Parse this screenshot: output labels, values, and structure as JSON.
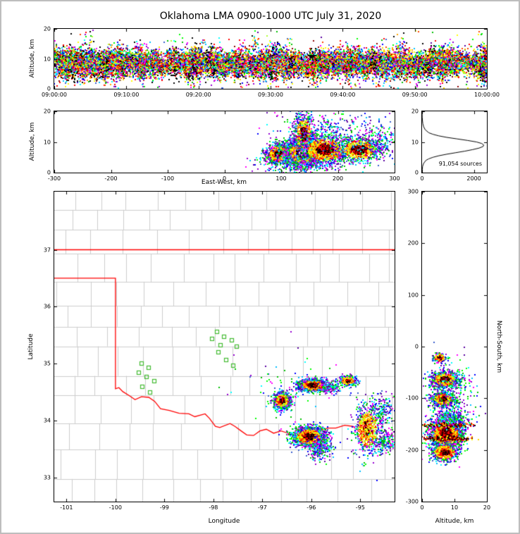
{
  "figure": {
    "title": "Oklahoma LMA 0900-1000 UTC July 31, 2020",
    "background": "#ffffff",
    "border_color": "#bdbdbd"
  },
  "palette": {
    "fringe": [
      "#0000ff",
      "#3a5fcd",
      "#00bfff",
      "#00ffff",
      "#00c000",
      "#00ff00",
      "#ff00ff",
      "#9400d3",
      "#5a00a0"
    ],
    "mid": [
      "#ff0000",
      "#ff4500",
      "#ffa500",
      "#ffd700",
      "#ffff00",
      "#adff2f"
    ],
    "core": [
      "#000000",
      "#3a0000",
      "#8b0000",
      "#ff0000"
    ],
    "white_core": [
      "#ffffff",
      "#e8e8e8",
      "#bdbdbd"
    ],
    "station": "#90ee90",
    "station_edge": "#44bb33",
    "state_border": "#ff0000",
    "county": "#cccccc",
    "histogram_line": "#000000"
  },
  "chart_data": [
    {
      "id": "time_height",
      "type": "scatter",
      "title": "",
      "xlabel": "",
      "ylabel": "Altitude, km",
      "xlim": [
        0,
        3600
      ],
      "ylim": [
        0,
        20
      ],
      "grid": false,
      "description": "Dense multicolor VHF lightning sources across the full hour, concentrated 5-12 km altitude, occasional columns to 18 km and black dense streaks",
      "xticks": [
        {
          "v": 0,
          "label": "09:00:00"
        },
        {
          "v": 600,
          "label": "09:10:00"
        },
        {
          "v": 1200,
          "label": "09:20:00"
        },
        {
          "v": 1800,
          "label": "09:30:00"
        },
        {
          "v": 2400,
          "label": "09:40:00"
        },
        {
          "v": 3000,
          "label": "09:50:00"
        },
        {
          "v": 3600,
          "label": "10:00:00"
        }
      ],
      "yticks": [
        {
          "v": 0,
          "label": "0"
        },
        {
          "v": 10,
          "label": "10"
        },
        {
          "v": 20,
          "label": "20"
        }
      ],
      "generator": {
        "kind": "bursts",
        "seed": 11,
        "bursts": 1050,
        "pts_min": 5,
        "pts_max": 30,
        "alt_mean": 8.4,
        "alt_sd": 1.8,
        "alt_jitter": 1.5,
        "black_prob": 0.07,
        "tall_prob": 0.06,
        "time_jitter_s": 18
      }
    },
    {
      "id": "east_west",
      "type": "scatter",
      "title": "",
      "xlabel": "East-West, km",
      "ylabel": "Altitude, km",
      "xlim": [
        -300,
        300
      ],
      "ylim": [
        0,
        20
      ],
      "grid": false,
      "seed": 21,
      "description": "Storm cross-section: dense sources 60-300 km east of network, main core near 120-150 km at 5-9 km altitude with overexposed white center, plume to 20 km",
      "xticks": [
        {
          "v": -300,
          "label": "-300"
        },
        {
          "v": -200,
          "label": "-200"
        },
        {
          "v": -100,
          "label": "-100"
        },
        {
          "v": 0,
          "label": "0"
        },
        {
          "v": 100,
          "label": "100"
        },
        {
          "v": 200,
          "label": "200"
        },
        {
          "v": 300,
          "label": "300"
        }
      ],
      "yticks": [
        {
          "v": 0,
          "label": "0"
        },
        {
          "v": 10,
          "label": "10"
        },
        {
          "v": 20,
          "label": "20"
        }
      ],
      "clusters": [
        {
          "cx": 95,
          "cy": 6,
          "sx": 11,
          "sy": 1.7,
          "n": 900,
          "style": "storm"
        },
        {
          "cx": 138,
          "cy": 6.5,
          "sx": 16,
          "sy": 2.3,
          "n": 2300,
          "style": "storm_white"
        },
        {
          "cx": 140,
          "cy": 12.5,
          "sx": 9,
          "sy": 3.4,
          "n": 650,
          "style": "storm"
        },
        {
          "cx": 178,
          "cy": 7.5,
          "sx": 22,
          "sy": 2.5,
          "n": 1300,
          "style": "storm"
        },
        {
          "cx": 238,
          "cy": 7.5,
          "sx": 20,
          "sy": 2.1,
          "n": 800,
          "style": "storm"
        },
        {
          "cx": 272,
          "cy": 10,
          "sx": 18,
          "sy": 2.4,
          "n": 220,
          "style": "sparse"
        },
        {
          "cx": 190,
          "cy": 14.5,
          "sx": 55,
          "sy": 2.6,
          "n": 260,
          "style": "sparse"
        },
        {
          "cx": 130,
          "cy": 2.8,
          "sx": 35,
          "sy": 1.4,
          "n": 260,
          "style": "sparse"
        }
      ]
    },
    {
      "id": "histogram",
      "type": "line",
      "title": "",
      "xlabel": "",
      "ylabel": "",
      "xlim": [
        0,
        2500
      ],
      "ylim": [
        0,
        20
      ],
      "grid": false,
      "annotation": "91,054 sources",
      "description": "Altitude histogram of source counts, peak ~2380 sources near 9 km",
      "xticks": [
        {
          "v": 0,
          "label": "0"
        },
        {
          "v": 2000,
          "label": "2000"
        }
      ],
      "yticks": [
        {
          "v": 0,
          "label": "0"
        },
        {
          "v": 10,
          "label": "10"
        },
        {
          "v": 20,
          "label": "20"
        }
      ],
      "profile": {
        "alt": [
          0,
          1,
          2,
          3,
          4,
          4.5,
          5,
          5.5,
          6,
          6.5,
          7,
          7.5,
          8,
          8.5,
          9,
          9.5,
          10,
          10.5,
          11,
          11.5,
          12,
          12.5,
          13,
          14,
          15,
          16,
          17,
          18,
          19,
          20
        ],
        "count": [
          5,
          10,
          20,
          60,
          150,
          260,
          420,
          650,
          950,
          1300,
          1650,
          1950,
          2200,
          2350,
          2380,
          2300,
          2100,
          1750,
          1350,
          950,
          640,
          420,
          260,
          120,
          60,
          30,
          15,
          8,
          4,
          2
        ]
      }
    },
    {
      "id": "map",
      "type": "scatter",
      "title": "",
      "xlabel": "Longitude",
      "ylabel": "Latitude",
      "xlim": [
        -101.25,
        -94.3
      ],
      "ylim": [
        32.58,
        38.02
      ],
      "grid": false,
      "seed": 31,
      "description": "Plan view: Oklahoma state border in red, gray county lines, green LMA station squares, colored lightning source clusters in SE Oklahoma",
      "xticks": [
        {
          "v": -101,
          "label": "-101"
        },
        {
          "v": -100,
          "label": "-100"
        },
        {
          "v": -99,
          "label": "-99"
        },
        {
          "v": -98,
          "label": "-98"
        },
        {
          "v": -97,
          "label": "-97"
        },
        {
          "v": -96,
          "label": "-96"
        },
        {
          "v": -95,
          "label": "-95"
        }
      ],
      "yticks": [
        {
          "v": 33,
          "label": "33"
        },
        {
          "v": 34,
          "label": "34"
        },
        {
          "v": 35,
          "label": "35"
        },
        {
          "v": 36,
          "label": "36"
        },
        {
          "v": 37,
          "label": "37"
        }
      ],
      "state_border": {
        "north": [
          [
            -101.25,
            37.0
          ],
          [
            -94.3,
            37.0
          ]
        ],
        "west_south": [
          [
            -101.25,
            36.5
          ],
          [
            -100.0,
            36.5
          ],
          [
            -100.0,
            34.56
          ],
          [
            -99.93,
            34.58
          ],
          [
            -99.85,
            34.51
          ],
          [
            -99.72,
            34.44
          ],
          [
            -99.6,
            34.37
          ],
          [
            -99.47,
            34.42
          ],
          [
            -99.32,
            34.41
          ],
          [
            -99.2,
            34.34
          ],
          [
            -99.08,
            34.21
          ],
          [
            -98.9,
            34.18
          ],
          [
            -98.7,
            34.13
          ],
          [
            -98.5,
            34.12
          ],
          [
            -98.38,
            34.07
          ],
          [
            -98.17,
            34.12
          ],
          [
            -98.08,
            34.04
          ],
          [
            -97.96,
            33.9
          ],
          [
            -97.87,
            33.88
          ],
          [
            -97.66,
            33.95
          ],
          [
            -97.56,
            33.9
          ],
          [
            -97.45,
            33.83
          ],
          [
            -97.32,
            33.75
          ],
          [
            -97.18,
            33.74
          ],
          [
            -97.05,
            33.82
          ],
          [
            -96.92,
            33.85
          ],
          [
            -96.77,
            33.78
          ],
          [
            -96.62,
            33.82
          ],
          [
            -96.44,
            33.77
          ],
          [
            -96.3,
            33.7
          ],
          [
            -96.15,
            33.75
          ],
          [
            -96.0,
            33.82
          ],
          [
            -95.83,
            33.84
          ],
          [
            -95.65,
            33.87
          ],
          [
            -95.5,
            33.87
          ],
          [
            -95.32,
            33.92
          ],
          [
            -95.15,
            33.9
          ],
          [
            -94.98,
            33.78
          ],
          [
            -94.82,
            33.73
          ],
          [
            -94.65,
            33.68
          ],
          [
            -94.48,
            33.63
          ],
          [
            -94.3,
            33.58
          ]
        ]
      },
      "stations": [
        [
          -97.93,
          35.56
        ],
        [
          -97.78,
          35.47
        ],
        [
          -98.02,
          35.43
        ],
        [
          -97.62,
          35.41
        ],
        [
          -97.86,
          35.33
        ],
        [
          -97.52,
          35.3
        ],
        [
          -97.9,
          35.2
        ],
        [
          -97.74,
          35.07
        ],
        [
          -97.6,
          34.96
        ],
        [
          -99.47,
          35.0
        ],
        [
          -99.32,
          34.93
        ],
        [
          -99.52,
          34.84
        ],
        [
          -99.36,
          34.77
        ],
        [
          -99.2,
          34.7
        ],
        [
          -99.45,
          34.6
        ],
        [
          -99.3,
          34.5
        ]
      ],
      "clusters": [
        {
          "cx": -96.6,
          "cy": 34.35,
          "sx": 0.09,
          "sy": 0.075,
          "n": 750,
          "style": "storm"
        },
        {
          "cx": -95.97,
          "cy": 34.62,
          "sx": 0.15,
          "sy": 0.055,
          "n": 950,
          "style": "storm"
        },
        {
          "cx": -95.6,
          "cy": 34.58,
          "sx": 0.1,
          "sy": 0.05,
          "n": 180,
          "style": "sparse"
        },
        {
          "cx": -95.25,
          "cy": 34.7,
          "sx": 0.085,
          "sy": 0.045,
          "n": 380,
          "style": "storm"
        },
        {
          "cx": -96.05,
          "cy": 33.72,
          "sx": 0.17,
          "sy": 0.085,
          "n": 1700,
          "style": "storm"
        },
        {
          "cx": -95.8,
          "cy": 33.5,
          "sx": 0.12,
          "sy": 0.1,
          "n": 260,
          "style": "sparse"
        },
        {
          "cx": -94.85,
          "cy": 33.85,
          "sx": 0.14,
          "sy": 0.22,
          "n": 700,
          "style": "storm_loose"
        },
        {
          "cx": -94.55,
          "cy": 34.2,
          "sx": 0.12,
          "sy": 0.12,
          "n": 180,
          "style": "sparse"
        },
        {
          "cx": -94.5,
          "cy": 33.65,
          "sx": 0.14,
          "sy": 0.1,
          "n": 220,
          "style": "sparse"
        },
        {
          "cx": -96.35,
          "cy": 34.55,
          "sx": 0.5,
          "sy": 0.3,
          "n": 60,
          "style": "sparse"
        }
      ]
    },
    {
      "id": "north_south",
      "type": "scatter",
      "title": "",
      "xlabel": "Altitude, km",
      "ylabel": "North-South, km",
      "xlim": [
        0,
        20
      ],
      "ylim": [
        -300,
        300
      ],
      "grid": false,
      "seed": 41,
      "description": "North-south cross-section: source bands near -22, -64, -102 and a large cluster -130 to -220 km with dense dark streaks, mostly 4-12 km altitude",
      "xticks": [
        {
          "v": 0,
          "label": "0"
        },
        {
          "v": 10,
          "label": "10"
        },
        {
          "v": 20,
          "label": "20"
        }
      ],
      "yticks": [
        {
          "v": 300,
          "label": "300"
        },
        {
          "v": 200,
          "label": "200"
        },
        {
          "v": 100,
          "label": "100"
        },
        {
          "v": 0,
          "label": "0"
        },
        {
          "v": -100,
          "label": "-100"
        },
        {
          "v": -200,
          "label": "-200"
        },
        {
          "v": -300,
          "label": "-300"
        }
      ],
      "clusters": [
        {
          "cx": 5.5,
          "cy": -22,
          "sx": 1.1,
          "sy": 5,
          "n": 160,
          "style": "storm"
        },
        {
          "cx": 7,
          "cy": -64,
          "sx": 2.1,
          "sy": 8,
          "n": 900,
          "style": "storm"
        },
        {
          "cx": 6.5,
          "cy": -102,
          "sx": 1.9,
          "sy": 7,
          "n": 700,
          "style": "storm"
        },
        {
          "cx": 7.5,
          "cy": -168,
          "sx": 2.6,
          "sy": 16,
          "n": 1700,
          "style": "storm"
        },
        {
          "cx": 7,
          "cy": -205,
          "sx": 2.2,
          "sy": 9,
          "n": 550,
          "style": "storm"
        },
        {
          "cx": 8,
          "cy": -152,
          "sx": 3.2,
          "sy": 2,
          "n": 260,
          "style": "dense_core"
        },
        {
          "cx": 8,
          "cy": -178,
          "sx": 3.4,
          "sy": 2,
          "n": 260,
          "style": "dense_core"
        },
        {
          "cx": 9.5,
          "cy": -135,
          "sx": 3,
          "sy": 10,
          "n": 260,
          "style": "sparse"
        },
        {
          "cx": 10,
          "cy": -75,
          "sx": 4,
          "sy": 28,
          "n": 140,
          "style": "sparse"
        }
      ]
    }
  ]
}
